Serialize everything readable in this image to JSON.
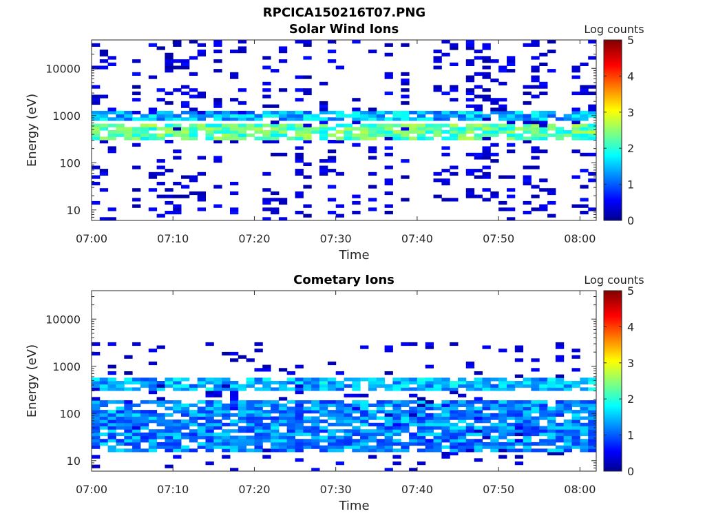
{
  "figure": {
    "title": "RPCICA150216T07.PNG"
  },
  "colormap": {
    "name": "jet",
    "stops": [
      "#00008f",
      "#0000ff",
      "#007fff",
      "#00ffff",
      "#7fff7f",
      "#ffff00",
      "#ff7f00",
      "#ff0000",
      "#800000"
    ]
  },
  "chart_data": [
    {
      "type": "heatmap",
      "title": "Solar Wind Ions",
      "xlabel": "Time",
      "ylabel": "Energy (eV)",
      "yscale": "log",
      "xlim": [
        "07:00",
        "08:02"
      ],
      "ylim": [
        6,
        40000
      ],
      "xticks": [
        "07:00",
        "07:10",
        "07:20",
        "07:30",
        "07:40",
        "07:50",
        "08:00"
      ],
      "yticks": [
        10,
        100,
        1000,
        10000
      ],
      "ytick_labels": [
        "10",
        "100",
        "1000",
        "10000"
      ],
      "colorbar": {
        "label": "Log counts",
        "range": [
          0,
          5
        ],
        "ticks": [
          "0",
          "1",
          "2",
          "3",
          "4",
          "5"
        ]
      },
      "grid": false,
      "features": [
        {
          "name": "main beam",
          "energy_eV": [
            300,
            700
          ],
          "log_counts": 2.6
        },
        {
          "name": "secondary beam",
          "energy_eV": [
            800,
            1200
          ],
          "log_counts": 1.8
        },
        {
          "name": "background",
          "energy_eV": [
            6,
            40000
          ],
          "log_counts": 0.3
        }
      ]
    },
    {
      "type": "heatmap",
      "title": "Cometary Ions",
      "xlabel": "Time",
      "ylabel": "Energy (eV)",
      "yscale": "log",
      "xlim": [
        "07:00",
        "08:02"
      ],
      "ylim": [
        6,
        40000
      ],
      "xticks": [
        "07:00",
        "07:10",
        "07:20",
        "07:30",
        "07:40",
        "07:50",
        "08:00"
      ],
      "yticks": [
        10,
        100,
        1000,
        10000
      ],
      "ytick_labels": [
        "10",
        "100",
        "1000",
        "10000"
      ],
      "colorbar": {
        "label": "Log counts",
        "range": [
          0,
          5
        ],
        "ticks": [
          "0",
          "1",
          "2",
          "3",
          "4",
          "5"
        ]
      },
      "grid": false,
      "features": [
        {
          "name": "solar wind beam",
          "energy_eV": [
            300,
            600
          ],
          "log_counts": 1.8
        },
        {
          "name": "cometary population",
          "energy_eV": [
            15,
            200
          ],
          "log_counts": 1.6
        },
        {
          "name": "background",
          "energy_eV": [
            6,
            3000
          ],
          "log_counts": 0.3
        }
      ]
    }
  ]
}
